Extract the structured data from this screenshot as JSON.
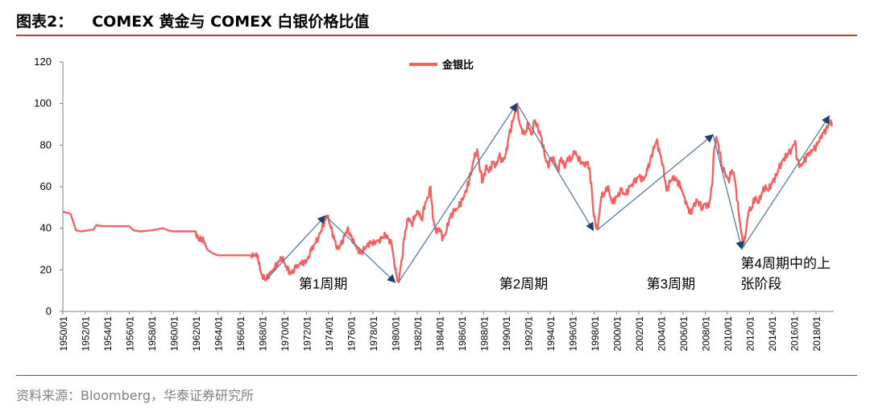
{
  "header": {
    "figure_label": "图表2：",
    "figure_title": "COMEX 黄金与 COMEX 白银价格比值"
  },
  "footer": {
    "source": "资料来源：Bloomberg，华泰证券研究所"
  },
  "chart_data": {
    "type": "line",
    "series": [
      {
        "name": "金银比",
        "color": "#f26262"
      }
    ],
    "x_tick_labels": [
      "1950/01",
      "1952/01",
      "1954/01",
      "1956/01",
      "1958/01",
      "1960/01",
      "1962/01",
      "1964/01",
      "1966/01",
      "1968/01",
      "1970/01",
      "1972/01",
      "1974/01",
      "1976/01",
      "1978/01",
      "1980/01",
      "1982/01",
      "1984/01",
      "1986/01",
      "1988/01",
      "1990/01",
      "1992/01",
      "1994/01",
      "1996/01",
      "1998/01",
      "2000/01",
      "2002/01",
      "2004/01",
      "2006/01",
      "2008/01",
      "2010/01",
      "2012/01",
      "2014/01",
      "2016/01",
      "2018/01"
    ],
    "x_range": [
      1950.0,
      2019.6
    ],
    "ylim": [
      0,
      120
    ],
    "y_ticks": [
      0,
      20,
      40,
      60,
      80,
      100,
      120
    ],
    "points": [
      [
        1950.0,
        48
      ],
      [
        1950.7,
        47
      ],
      [
        1951.0,
        42
      ],
      [
        1951.2,
        39
      ],
      [
        1951.6,
        38.5
      ],
      [
        1952.3,
        39
      ],
      [
        1952.8,
        39.5
      ],
      [
        1953.0,
        41.5
      ],
      [
        1953.6,
        41
      ],
      [
        1954.5,
        41
      ],
      [
        1955.5,
        41
      ],
      [
        1956.0,
        41
      ],
      [
        1956.4,
        39
      ],
      [
        1957.0,
        38.5
      ],
      [
        1958.0,
        39
      ],
      [
        1958.5,
        39.5
      ],
      [
        1959.0,
        40
      ],
      [
        1959.5,
        39
      ],
      [
        1960.0,
        38.5
      ],
      [
        1961.0,
        38.5
      ],
      [
        1962.0,
        38.5
      ],
      [
        1962.2,
        35
      ],
      [
        1962.7,
        34.5
      ],
      [
        1963.0,
        30
      ],
      [
        1963.5,
        28
      ],
      [
        1964.0,
        27
      ],
      [
        1965.0,
        27
      ],
      [
        1966.0,
        27
      ],
      [
        1967.0,
        27
      ],
      [
        1967.6,
        27
      ],
      [
        1967.8,
        20
      ],
      [
        1968.0,
        17
      ],
      [
        1968.3,
        15.5
      ],
      [
        1968.7,
        18
      ],
      [
        1969.1,
        21
      ],
      [
        1969.5,
        24
      ],
      [
        1969.8,
        26
      ],
      [
        1970.2,
        21
      ],
      [
        1970.6,
        18
      ],
      [
        1971.0,
        21
      ],
      [
        1971.5,
        23
      ],
      [
        1972.0,
        24
      ],
      [
        1972.4,
        29
      ],
      [
        1972.8,
        33
      ],
      [
        1973.1,
        36
      ],
      [
        1973.4,
        40
      ],
      [
        1973.7,
        44
      ],
      [
        1973.9,
        46
      ],
      [
        1974.2,
        40
      ],
      [
        1974.5,
        35
      ],
      [
        1974.8,
        30
      ],
      [
        1975.1,
        32
      ],
      [
        1975.4,
        36
      ],
      [
        1975.7,
        40
      ],
      [
        1976.0,
        36
      ],
      [
        1976.3,
        33
      ],
      [
        1976.6,
        30
      ],
      [
        1976.9,
        28
      ],
      [
        1977.2,
        30
      ],
      [
        1977.5,
        32
      ],
      [
        1977.8,
        33
      ],
      [
        1978.1,
        33
      ],
      [
        1978.5,
        34
      ],
      [
        1978.8,
        35
      ],
      [
        1979.1,
        37
      ],
      [
        1979.4,
        35
      ],
      [
        1979.7,
        32
      ],
      [
        1979.9,
        25
      ],
      [
        1980.1,
        18
      ],
      [
        1980.3,
        14
      ],
      [
        1980.6,
        25
      ],
      [
        1980.9,
        38
      ],
      [
        1981.2,
        45
      ],
      [
        1981.5,
        42
      ],
      [
        1981.8,
        46
      ],
      [
        1982.1,
        48
      ],
      [
        1982.4,
        44
      ],
      [
        1982.7,
        52
      ],
      [
        1983.0,
        55
      ],
      [
        1983.2,
        60
      ],
      [
        1983.4,
        45
      ],
      [
        1983.7,
        38
      ],
      [
        1984.0,
        40
      ],
      [
        1984.3,
        35
      ],
      [
        1984.6,
        38
      ],
      [
        1984.9,
        45
      ],
      [
        1985.3,
        48
      ],
      [
        1985.7,
        50
      ],
      [
        1986.2,
        55
      ],
      [
        1986.7,
        63
      ],
      [
        1987.1,
        73
      ],
      [
        1987.4,
        78
      ],
      [
        1987.7,
        67
      ],
      [
        1987.9,
        62
      ],
      [
        1988.2,
        70
      ],
      [
        1988.5,
        67
      ],
      [
        1988.8,
        72
      ],
      [
        1989.1,
        70
      ],
      [
        1989.4,
        75
      ],
      [
        1989.7,
        72
      ],
      [
        1990.0,
        76
      ],
      [
        1990.3,
        85
      ],
      [
        1990.6,
        91
      ],
      [
        1990.8,
        95
      ],
      [
        1991.0,
        100
      ],
      [
        1991.2,
        92
      ],
      [
        1991.4,
        88
      ],
      [
        1991.7,
        85
      ],
      [
        1992.0,
        90
      ],
      [
        1992.3,
        85
      ],
      [
        1992.6,
        92
      ],
      [
        1992.9,
        88
      ],
      [
        1993.2,
        84
      ],
      [
        1993.5,
        75
      ],
      [
        1993.8,
        70
      ],
      [
        1994.1,
        74
      ],
      [
        1994.4,
        72
      ],
      [
        1994.7,
        68
      ],
      [
        1995.0,
        74
      ],
      [
        1995.3,
        69
      ],
      [
        1995.6,
        74
      ],
      [
        1995.9,
        73
      ],
      [
        1996.2,
        77
      ],
      [
        1996.5,
        74
      ],
      [
        1996.8,
        72
      ],
      [
        1997.1,
        70
      ],
      [
        1997.4,
        72
      ],
      [
        1997.7,
        62
      ],
      [
        1997.9,
        48
      ],
      [
        1998.1,
        41
      ],
      [
        1998.3,
        40
      ],
      [
        1998.6,
        55
      ],
      [
        1998.9,
        57
      ],
      [
        1999.2,
        60
      ],
      [
        1999.6,
        52
      ],
      [
        2000.0,
        55
      ],
      [
        2000.4,
        58
      ],
      [
        2000.8,
        56
      ],
      [
        2001.2,
        60
      ],
      [
        2001.6,
        62
      ],
      [
        2002.0,
        65
      ],
      [
        2002.4,
        63
      ],
      [
        2002.8,
        68
      ],
      [
        2003.0,
        72
      ],
      [
        2003.3,
        78
      ],
      [
        2003.6,
        82
      ],
      [
        2003.9,
        76
      ],
      [
        2004.2,
        70
      ],
      [
        2004.5,
        58
      ],
      [
        2004.8,
        62
      ],
      [
        2005.1,
        65
      ],
      [
        2005.4,
        63
      ],
      [
        2005.8,
        60
      ],
      [
        2006.1,
        55
      ],
      [
        2006.4,
        50
      ],
      [
        2006.7,
        47
      ],
      [
        2007.0,
        52
      ],
      [
        2007.3,
        53
      ],
      [
        2007.7,
        50
      ],
      [
        2008.0,
        52
      ],
      [
        2008.3,
        50
      ],
      [
        2008.6,
        60
      ],
      [
        2008.8,
        78
      ],
      [
        2009.0,
        84
      ],
      [
        2009.2,
        80
      ],
      [
        2009.5,
        70
      ],
      [
        2009.8,
        66
      ],
      [
        2010.1,
        63
      ],
      [
        2010.4,
        68
      ],
      [
        2010.6,
        66
      ],
      [
        2010.8,
        58
      ],
      [
        2011.0,
        48
      ],
      [
        2011.2,
        40
      ],
      [
        2011.4,
        32
      ],
      [
        2011.6,
        35
      ],
      [
        2011.9,
        48
      ],
      [
        2012.2,
        50
      ],
      [
        2012.5,
        55
      ],
      [
        2012.8,
        52
      ],
      [
        2013.1,
        57
      ],
      [
        2013.4,
        60
      ],
      [
        2013.7,
        58
      ],
      [
        2014.0,
        62
      ],
      [
        2014.3,
        64
      ],
      [
        2014.6,
        68
      ],
      [
        2014.9,
        72
      ],
      [
        2015.2,
        74
      ],
      [
        2015.5,
        76
      ],
      [
        2015.8,
        78
      ],
      [
        2016.1,
        82
      ],
      [
        2016.3,
        73
      ],
      [
        2016.6,
        70
      ],
      [
        2016.9,
        72
      ],
      [
        2017.2,
        75
      ],
      [
        2017.5,
        77
      ],
      [
        2017.8,
        78
      ],
      [
        2018.1,
        80
      ],
      [
        2018.4,
        84
      ],
      [
        2018.7,
        86
      ],
      [
        2019.0,
        88
      ],
      [
        2019.3,
        92
      ],
      [
        2019.5,
        90
      ]
    ],
    "annotations": {
      "arrows": [
        {
          "from": [
            1968.3,
            15
          ],
          "to": [
            1973.7,
            46
          ]
        },
        {
          "from": [
            1973.7,
            46
          ],
          "to": [
            1980.0,
            14
          ]
        },
        {
          "from": [
            1980.3,
            14
          ],
          "to": [
            1991.0,
            100
          ]
        },
        {
          "from": [
            1991.0,
            100
          ],
          "to": [
            1997.9,
            39
          ]
        },
        {
          "from": [
            1998.2,
            39
          ],
          "to": [
            2008.7,
            85
          ]
        },
        {
          "from": [
            2008.7,
            85
          ],
          "to": [
            2011.3,
            30
          ]
        },
        {
          "from": [
            2011.3,
            30
          ],
          "to": [
            2019.2,
            94
          ]
        }
      ],
      "labels": [
        {
          "text": "第1周期",
          "x": 1971.3,
          "y": 11
        },
        {
          "text": "第2周期",
          "x": 1989.4,
          "y": 11
        },
        {
          "text": "第3周期",
          "x": 2002.7,
          "y": 11
        },
        {
          "text": "第4周期中的上",
          "x": 2011.2,
          "y": 21
        },
        {
          "text": "张阶段",
          "x": 2011.2,
          "y": 11
        }
      ]
    },
    "legend": {
      "label": "金银比",
      "position": "top-center"
    }
  }
}
